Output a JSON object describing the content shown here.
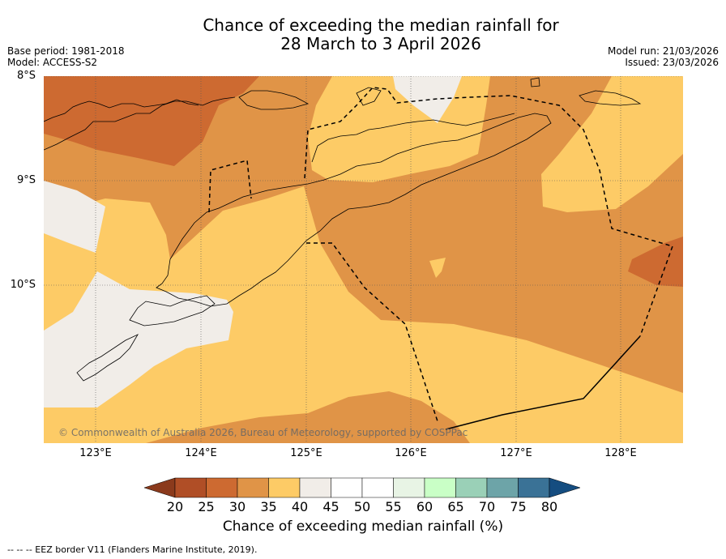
{
  "title_line1": "Chance of exceeding the median rainfall for",
  "title_line2": "28 March to 3 April 2026",
  "base_period": "Base period: 1981-2018",
  "model": "Model: ACCESS-S2",
  "model_run": "Model run: 21/03/2026",
  "issued": "Issued: 23/03/2026",
  "lat_labels": [
    "8°S",
    "9°S",
    "10°S"
  ],
  "lon_labels": [
    "123°E",
    "124°E",
    "125°E",
    "126°E",
    "127°E",
    "128°E"
  ],
  "copyright": "© Commonwealth of Australia 2026, Bureau of Meteorology, supported by COSPPac",
  "colorbar": {
    "title": "Chance of exceeding median rainfall (%)",
    "tick_labels": [
      "20",
      "25",
      "30",
      "35",
      "40",
      "45",
      "50",
      "55",
      "60",
      "65",
      "70",
      "75",
      "80"
    ],
    "colors": [
      "#8b3a1c",
      "#b04e26",
      "#cd6a31",
      "#e09447",
      "#fdcb66",
      "#f1ede8",
      "#ffffff",
      "#ffffff",
      "#e8f4e5",
      "#c9ffc6",
      "#9ad0b7",
      "#6da4a8",
      "#3a7296",
      "#154d80"
    ]
  },
  "footer_note": "-- -- -- EEZ border V11 (Flanders Marine Institute, 2019).",
  "palette": {
    "lt25": "#cd6a31",
    "b30_35": "#e09447",
    "b35_40": "#fdcb66",
    "b40_45": "#f1ede8"
  }
}
